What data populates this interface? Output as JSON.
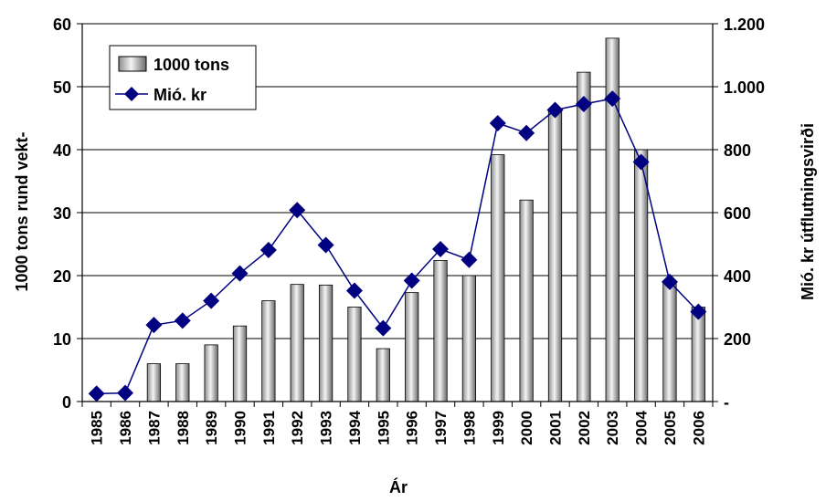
{
  "chart_data": {
    "type": "bar",
    "title": "",
    "xlabel": "Ár",
    "ylabel": "1000 tons rund vekt-",
    "y2label": "Mió. kr útflutningsvirði",
    "categories": [
      "1985",
      "1986",
      "1987",
      "1988",
      "1989",
      "1990",
      "1991",
      "1992",
      "1993",
      "1994",
      "1995",
      "1996",
      "1997",
      "1998",
      "1999",
      "2000",
      "2001",
      "2002",
      "2003",
      "2004",
      "2005",
      "2006"
    ],
    "ylim": [
      0,
      60
    ],
    "yticks": [
      "0",
      "10",
      "20",
      "30",
      "40",
      "50",
      "60"
    ],
    "y2lim": [
      0,
      1200
    ],
    "y2ticks": [
      "-",
      "200",
      "400",
      "600",
      "800",
      "1.000",
      "1.200"
    ],
    "grid": true,
    "legend_position": "top-left",
    "series": [
      {
        "name": "1000 tons",
        "kind": "bar",
        "axis": "left",
        "values": [
          0,
          0,
          6,
          6,
          9,
          12,
          16,
          18.6,
          18.5,
          15,
          8.4,
          17.3,
          22.4,
          20,
          39.2,
          32,
          46,
          52.3,
          57.7,
          40,
          19,
          15
        ]
      },
      {
        "name": "Mió. kr",
        "kind": "line",
        "axis": "right",
        "color": "#000080",
        "values": [
          25,
          27,
          243,
          257,
          320,
          407,
          481,
          608,
          497,
          352,
          233,
          384,
          484,
          450,
          884,
          853,
          926,
          945,
          962,
          761,
          380,
          285
        ]
      }
    ]
  }
}
